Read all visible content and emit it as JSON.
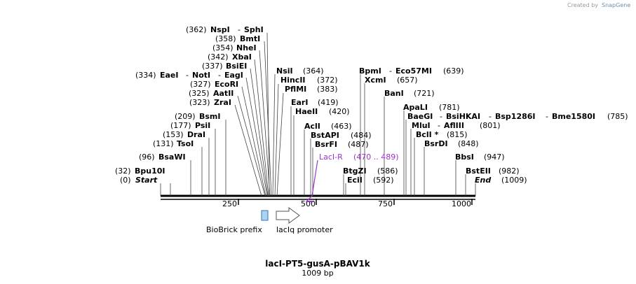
{
  "credit": {
    "prefix": "Created by",
    "brand": "SnapGene"
  },
  "sequence": {
    "name": "lacI-PT5-gusA-pBAV1k",
    "length_label": "1009 bp",
    "length": 1009
  },
  "ruler": {
    "ticks": [
      250,
      500,
      750,
      1000
    ]
  },
  "sites": [
    {
      "pos": "(362)",
      "names": [
        "NspI",
        "SphI"
      ],
      "bp": 362
    },
    {
      "pos": "(358)",
      "names": [
        "BmtI"
      ],
      "bp": 358
    },
    {
      "pos": "(354)",
      "names": [
        "NheI"
      ],
      "bp": 354
    },
    {
      "pos": "(342)",
      "names": [
        "XbaI"
      ],
      "bp": 342
    },
    {
      "pos": "(337)",
      "names": [
        "BsiEI"
      ],
      "bp": 337
    },
    {
      "pos": "(334)",
      "names": [
        "EaeI",
        "NotI",
        "EagI"
      ],
      "bp": 334
    },
    {
      "pos": "(327)",
      "names": [
        "EcoRI"
      ],
      "bp": 327
    },
    {
      "pos": "(325)",
      "names": [
        "AatII"
      ],
      "bp": 325
    },
    {
      "pos": "(323)",
      "names": [
        "ZraI"
      ],
      "bp": 323
    },
    {
      "pos": "(209)",
      "names": [
        "BsmI"
      ],
      "bp": 209
    },
    {
      "pos": "(177)",
      "names": [
        "PsiI"
      ],
      "bp": 177
    },
    {
      "pos": "(153)",
      "names": [
        "DraI"
      ],
      "bp": 153
    },
    {
      "pos": "(131)",
      "names": [
        "TsoI"
      ],
      "bp": 131
    },
    {
      "pos": "(96)",
      "names": [
        "BsaWI"
      ],
      "bp": 96
    },
    {
      "pos": "(32)",
      "names": [
        "Bpu10I"
      ],
      "bp": 32
    },
    {
      "pos": "(0)",
      "names": [
        "Start"
      ],
      "bp": 0
    },
    {
      "pos": "(364)",
      "names": [
        "NsiI"
      ],
      "bp": 364
    },
    {
      "pos": "(372)",
      "names": [
        "HincII"
      ],
      "bp": 372
    },
    {
      "pos": "(383)",
      "names": [
        "PflMI"
      ],
      "bp": 383
    },
    {
      "pos": "(419)",
      "names": [
        "EarI"
      ],
      "bp": 419
    },
    {
      "pos": "(420)",
      "names": [
        "HaeII"
      ],
      "bp": 420
    },
    {
      "pos": "(463)",
      "names": [
        "AclI"
      ],
      "bp": 463
    },
    {
      "pos": "(484)",
      "names": [
        "BstAPI"
      ],
      "bp": 484
    },
    {
      "pos": "(487)",
      "names": [
        "BsrFI"
      ],
      "bp": 487
    },
    {
      "pos": "(586)",
      "names": [
        "BtgZI"
      ],
      "bp": 586
    },
    {
      "pos": "(592)",
      "names": [
        "EciI"
      ],
      "bp": 592
    },
    {
      "pos": "(639)",
      "names": [
        "BpmI",
        "Eco57MI"
      ],
      "bp": 639
    },
    {
      "pos": "(657)",
      "names": [
        "XcmI"
      ],
      "bp": 657
    },
    {
      "pos": "(721)",
      "names": [
        "BanI"
      ],
      "bp": 721
    },
    {
      "pos": "(781)",
      "names": [
        "ApaLI"
      ],
      "bp": 781
    },
    {
      "pos": "(785)",
      "names": [
        "BaeGI",
        "BsiHKAI",
        "Bsp1286I",
        "Bme1580I"
      ],
      "bp": 785
    },
    {
      "pos": "(801)",
      "names": [
        "MluI",
        "AflIII"
      ],
      "bp": 801
    },
    {
      "pos": "(815)",
      "names": [
        "BclI *"
      ],
      "bp": 815
    },
    {
      "pos": "(848)",
      "names": [
        "BsrDI"
      ],
      "bp": 848
    },
    {
      "pos": "(947)",
      "names": [
        "BbsI"
      ],
      "bp": 947
    },
    {
      "pos": "(982)",
      "names": [
        "BstEII"
      ],
      "bp": 982
    },
    {
      "pos": "(1009)",
      "names": [
        "End"
      ],
      "bp": 1009
    }
  ],
  "primer": {
    "name": "LacI-R",
    "range": "(470 .. 489)",
    "start": 470,
    "end": 489
  },
  "features": [
    {
      "name": "BioBrick prefix",
      "type": "misc",
      "color": "#a8d4f5",
      "stroke": "#3a6fb0"
    },
    {
      "name": "lacIq promoter",
      "type": "promoter",
      "color": "#ffffff",
      "stroke": "#555555"
    }
  ],
  "colors": {
    "primer": "#9933cc",
    "backbone": "#000000"
  }
}
